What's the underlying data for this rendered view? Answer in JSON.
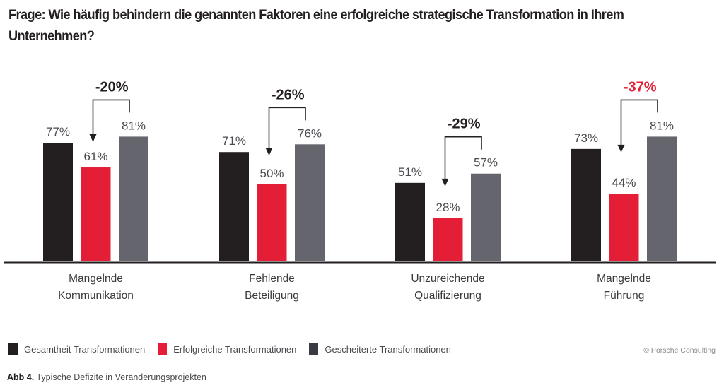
{
  "chart_data": {
    "type": "bar",
    "title": "Frage: Wie häufig behindern die genannten Faktoren eine erfolgreiche strategische Transformation in Ihrem Unternehmen?",
    "categories": [
      [
        "Mangelnde",
        "Kommunikation"
      ],
      [
        "Fehlende",
        "Beteiligung"
      ],
      [
        "Unzureichende",
        "Qualifizierung"
      ],
      [
        "Mangelnde",
        "Führung"
      ]
    ],
    "series": [
      {
        "name": "Gesamtheit Transformationen",
        "color": "#231f20",
        "values": [
          77,
          71,
          51,
          73
        ]
      },
      {
        "name": "Erfolgreiche Transformationen",
        "color": "#e31e36",
        "values": [
          61,
          50,
          28,
          44
        ]
      },
      {
        "name": "Gescheiterte Transformationen",
        "color": "#65656e",
        "values": [
          81,
          76,
          57,
          81
        ]
      }
    ],
    "value_labels": [
      [
        "77%",
        "61%",
        "81%"
      ],
      [
        "71%",
        "50%",
        "76%"
      ],
      [
        "51%",
        "28%",
        "57%"
      ],
      [
        "73%",
        "44%",
        "81%"
      ]
    ],
    "annotations": [
      {
        "text": "-20%",
        "from_series": "Gescheiterte Transformationen",
        "to_series": "Erfolgreiche Transformationen",
        "highlight": false
      },
      {
        "text": "-26%",
        "from_series": "Gescheiterte Transformationen",
        "to_series": "Erfolgreiche Transformationen",
        "highlight": false
      },
      {
        "text": "-29%",
        "from_series": "Gescheiterte Transformationen",
        "to_series": "Erfolgreiche Transformationen",
        "highlight": false
      },
      {
        "text": "-37%",
        "from_series": "Gescheiterte Transformationen",
        "to_series": "Erfolgreiche Transformationen",
        "highlight": true
      }
    ],
    "xlabel": "",
    "ylabel": "",
    "ylim": [
      0,
      100
    ],
    "grid": false,
    "legend_position": "bottom-left",
    "colors": {
      "highlight": "#e31e36",
      "annotation": "#231f20"
    }
  },
  "title": "Frage: Wie häufig behindern die genannten Faktoren eine erfolgreiche strategische Transformation in Ihrem Unternehmen?",
  "legend": [
    {
      "label": "Gesamtheit Transformationen",
      "color": "#231f20"
    },
    {
      "label": "Erfolgreiche Transformationen",
      "color": "#e31e36"
    },
    {
      "label": "Gescheiterte Transformationen",
      "color": "#3a3a45"
    }
  ],
  "credit": "© Porsche Consulting",
  "caption": {
    "label": "Abb 4.",
    "text": " Typische Defizite in Veränderungsprojekten"
  }
}
